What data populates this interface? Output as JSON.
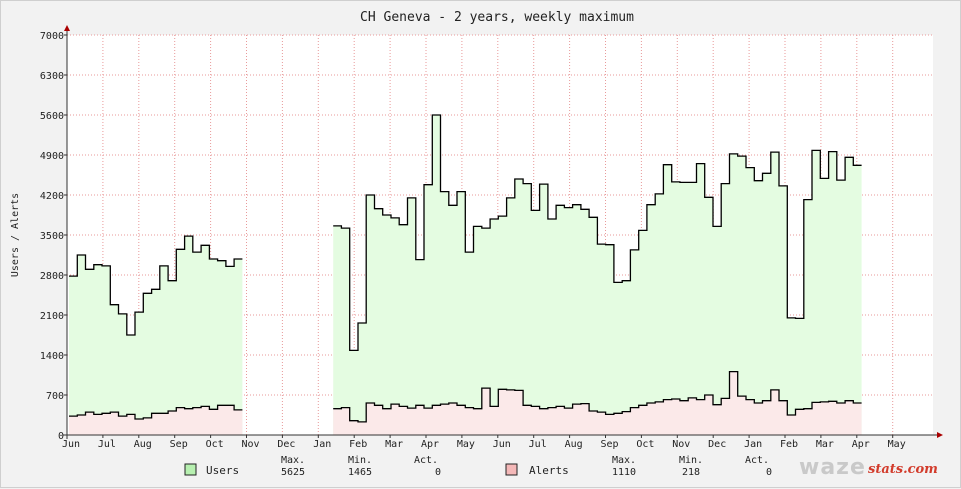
{
  "chart_data": {
    "type": "area",
    "title": "CH Geneva - 2 years, weekly maximum",
    "ylabel": "Users / Alerts",
    "ylim": [
      0,
      7000
    ],
    "yticks": [
      "0",
      "700",
      "1400",
      "2100",
      "2800",
      "3500",
      "4200",
      "4900",
      "5600",
      "6300",
      "7000"
    ],
    "xticks": [
      "Jun",
      "Jul",
      "Aug",
      "Sep",
      "Oct",
      "Nov",
      "Dec",
      "Jan",
      "Feb",
      "Mar",
      "Apr",
      "May",
      "Jun",
      "Jul",
      "Aug",
      "Sep",
      "Oct",
      "Nov",
      "Dec",
      "Jan",
      "Feb",
      "Mar",
      "Apr",
      "May"
    ],
    "grid": true,
    "series": [
      {
        "name": "Users",
        "color": "#b7f0b0",
        "fill": "#e4fce1",
        "line": "#000000",
        "values": [
          2780,
          3150,
          2900,
          2980,
          2960,
          2280,
          2120,
          1750,
          2150,
          2480,
          2550,
          2960,
          2700,
          3250,
          3480,
          3200,
          3320,
          3080,
          3050,
          2950,
          3080,
          null,
          null,
          null,
          null,
          null,
          null,
          null,
          null,
          null,
          null,
          null,
          3660,
          3620,
          1480,
          1960,
          4200,
          3960,
          3850,
          3800,
          3680,
          4150,
          3070,
          4380,
          5600,
          4260,
          4020,
          4260,
          3200,
          3650,
          3620,
          3780,
          3830,
          4150,
          4480,
          4400,
          3930,
          4390,
          3780,
          4020,
          3980,
          4030,
          3950,
          3810,
          3340,
          3330,
          2670,
          2700,
          3240,
          3580,
          4030,
          4220,
          4730,
          4430,
          4420,
          4420,
          4750,
          4160,
          3650,
          4400,
          4920,
          4880,
          4680,
          4450,
          4580,
          4950,
          4360,
          2050,
          2040,
          4120,
          4980,
          4490,
          4960,
          4460,
          4860,
          4720
        ],
        "max": "5625",
        "min": "1465",
        "act": "0"
      },
      {
        "name": "Alerts",
        "color": "#f4b8b8",
        "fill": "#fbe9e9",
        "line": "#000000",
        "values": [
          330,
          350,
          400,
          360,
          380,
          400,
          330,
          360,
          280,
          300,
          380,
          380,
          420,
          480,
          460,
          480,
          500,
          450,
          520,
          520,
          440,
          null,
          null,
          null,
          null,
          null,
          null,
          null,
          null,
          null,
          null,
          null,
          460,
          480,
          250,
          230,
          560,
          520,
          460,
          540,
          500,
          470,
          520,
          470,
          520,
          540,
          560,
          520,
          480,
          460,
          820,
          500,
          800,
          790,
          780,
          520,
          500,
          460,
          480,
          500,
          470,
          540,
          550,
          420,
          400,
          360,
          380,
          410,
          480,
          520,
          560,
          580,
          620,
          630,
          600,
          650,
          620,
          700,
          530,
          640,
          1110,
          680,
          620,
          560,
          600,
          790,
          600,
          350,
          450,
          460,
          570,
          580,
          590,
          560,
          600,
          560
        ],
        "max": "1110",
        "min": "218",
        "act": "0"
      }
    ]
  },
  "legend": {
    "headers": {
      "max": "Max.",
      "min": "Min.",
      "act": "Act."
    },
    "users": {
      "label": "Users",
      "max": "5625",
      "min": "1465",
      "act": "0"
    },
    "alerts": {
      "label": "Alerts",
      "max": "1110",
      "min": "218",
      "act": "0"
    }
  },
  "logo": {
    "main": "waze",
    "sub": "stats.com"
  }
}
